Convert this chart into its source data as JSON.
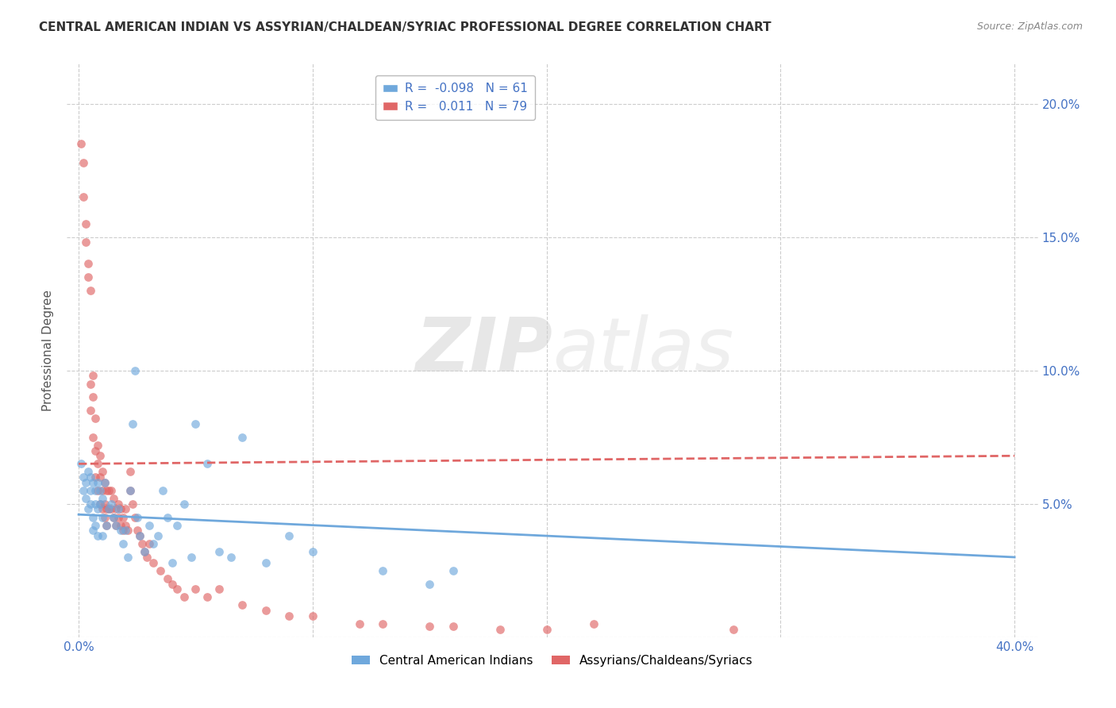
{
  "title": "CENTRAL AMERICAN INDIAN VS ASSYRIAN/CHALDEAN/SYRIAC PROFESSIONAL DEGREE CORRELATION CHART",
  "source": "Source: ZipAtlas.com",
  "ylabel": "Professional Degree",
  "y_ticks": [
    0.0,
    0.05,
    0.1,
    0.15,
    0.2
  ],
  "y_tick_labels": [
    "",
    "5.0%",
    "10.0%",
    "15.0%",
    "20.0%"
  ],
  "x_ticks": [
    0.0,
    0.1,
    0.2,
    0.3,
    0.4
  ],
  "x_tick_labels": [
    "0.0%",
    "",
    "",
    "",
    "40.0%"
  ],
  "legend_labels": [
    "Central American Indians",
    "Assyrians/Chaldeans/Syriacs"
  ],
  "blue_color": "#6fa8dc",
  "pink_color": "#e06666",
  "blue_r": "-0.098",
  "blue_n": "61",
  "pink_r": "0.011",
  "pink_n": "79",
  "watermark_zip": "ZIP",
  "watermark_atlas": "atlas",
  "blue_scatter": [
    [
      0.001,
      0.065
    ],
    [
      0.002,
      0.06
    ],
    [
      0.002,
      0.055
    ],
    [
      0.003,
      0.058
    ],
    [
      0.003,
      0.052
    ],
    [
      0.004,
      0.062
    ],
    [
      0.004,
      0.048
    ],
    [
      0.005,
      0.06
    ],
    [
      0.005,
      0.055
    ],
    [
      0.005,
      0.05
    ],
    [
      0.006,
      0.058
    ],
    [
      0.006,
      0.045
    ],
    [
      0.006,
      0.04
    ],
    [
      0.007,
      0.055
    ],
    [
      0.007,
      0.05
    ],
    [
      0.007,
      0.042
    ],
    [
      0.008,
      0.058
    ],
    [
      0.008,
      0.048
    ],
    [
      0.008,
      0.038
    ],
    [
      0.009,
      0.055
    ],
    [
      0.009,
      0.05
    ],
    [
      0.01,
      0.052
    ],
    [
      0.01,
      0.045
    ],
    [
      0.01,
      0.038
    ],
    [
      0.011,
      0.058
    ],
    [
      0.012,
      0.042
    ],
    [
      0.013,
      0.048
    ],
    [
      0.014,
      0.05
    ],
    [
      0.015,
      0.045
    ],
    [
      0.016,
      0.042
    ],
    [
      0.017,
      0.048
    ],
    [
      0.018,
      0.04
    ],
    [
      0.019,
      0.035
    ],
    [
      0.02,
      0.04
    ],
    [
      0.021,
      0.03
    ],
    [
      0.022,
      0.055
    ],
    [
      0.023,
      0.08
    ],
    [
      0.024,
      0.1
    ],
    [
      0.025,
      0.045
    ],
    [
      0.026,
      0.038
    ],
    [
      0.028,
      0.032
    ],
    [
      0.03,
      0.042
    ],
    [
      0.032,
      0.035
    ],
    [
      0.034,
      0.038
    ],
    [
      0.036,
      0.055
    ],
    [
      0.038,
      0.045
    ],
    [
      0.04,
      0.028
    ],
    [
      0.042,
      0.042
    ],
    [
      0.045,
      0.05
    ],
    [
      0.048,
      0.03
    ],
    [
      0.05,
      0.08
    ],
    [
      0.055,
      0.065
    ],
    [
      0.06,
      0.032
    ],
    [
      0.065,
      0.03
    ],
    [
      0.07,
      0.075
    ],
    [
      0.08,
      0.028
    ],
    [
      0.09,
      0.038
    ],
    [
      0.1,
      0.032
    ],
    [
      0.13,
      0.025
    ],
    [
      0.15,
      0.02
    ],
    [
      0.16,
      0.025
    ]
  ],
  "pink_scatter": [
    [
      0.001,
      0.185
    ],
    [
      0.002,
      0.178
    ],
    [
      0.002,
      0.165
    ],
    [
      0.003,
      0.155
    ],
    [
      0.003,
      0.148
    ],
    [
      0.004,
      0.14
    ],
    [
      0.004,
      0.135
    ],
    [
      0.005,
      0.13
    ],
    [
      0.005,
      0.095
    ],
    [
      0.005,
      0.085
    ],
    [
      0.006,
      0.098
    ],
    [
      0.006,
      0.09
    ],
    [
      0.006,
      0.075
    ],
    [
      0.007,
      0.082
    ],
    [
      0.007,
      0.07
    ],
    [
      0.007,
      0.06
    ],
    [
      0.008,
      0.072
    ],
    [
      0.008,
      0.065
    ],
    [
      0.008,
      0.055
    ],
    [
      0.009,
      0.068
    ],
    [
      0.009,
      0.06
    ],
    [
      0.009,
      0.05
    ],
    [
      0.01,
      0.062
    ],
    [
      0.01,
      0.055
    ],
    [
      0.01,
      0.048
    ],
    [
      0.011,
      0.058
    ],
    [
      0.011,
      0.05
    ],
    [
      0.011,
      0.045
    ],
    [
      0.012,
      0.055
    ],
    [
      0.012,
      0.048
    ],
    [
      0.012,
      0.042
    ],
    [
      0.013,
      0.055
    ],
    [
      0.013,
      0.048
    ],
    [
      0.014,
      0.055
    ],
    [
      0.014,
      0.048
    ],
    [
      0.015,
      0.052
    ],
    [
      0.015,
      0.045
    ],
    [
      0.016,
      0.048
    ],
    [
      0.016,
      0.042
    ],
    [
      0.017,
      0.05
    ],
    [
      0.017,
      0.045
    ],
    [
      0.018,
      0.048
    ],
    [
      0.018,
      0.042
    ],
    [
      0.019,
      0.045
    ],
    [
      0.019,
      0.04
    ],
    [
      0.02,
      0.048
    ],
    [
      0.02,
      0.042
    ],
    [
      0.021,
      0.04
    ],
    [
      0.022,
      0.062
    ],
    [
      0.022,
      0.055
    ],
    [
      0.023,
      0.05
    ],
    [
      0.024,
      0.045
    ],
    [
      0.025,
      0.04
    ],
    [
      0.026,
      0.038
    ],
    [
      0.027,
      0.035
    ],
    [
      0.028,
      0.032
    ],
    [
      0.029,
      0.03
    ],
    [
      0.03,
      0.035
    ],
    [
      0.032,
      0.028
    ],
    [
      0.035,
      0.025
    ],
    [
      0.038,
      0.022
    ],
    [
      0.04,
      0.02
    ],
    [
      0.042,
      0.018
    ],
    [
      0.045,
      0.015
    ],
    [
      0.05,
      0.018
    ],
    [
      0.055,
      0.015
    ],
    [
      0.06,
      0.018
    ],
    [
      0.07,
      0.012
    ],
    [
      0.08,
      0.01
    ],
    [
      0.09,
      0.008
    ],
    [
      0.1,
      0.008
    ],
    [
      0.12,
      0.005
    ],
    [
      0.13,
      0.005
    ],
    [
      0.15,
      0.004
    ],
    [
      0.16,
      0.004
    ],
    [
      0.18,
      0.003
    ],
    [
      0.2,
      0.003
    ],
    [
      0.22,
      0.005
    ],
    [
      0.28,
      0.003
    ]
  ],
  "blue_line_x": [
    0.0,
    0.4
  ],
  "blue_line_y": [
    0.046,
    0.03
  ],
  "pink_line_x": [
    0.0,
    0.4
  ],
  "pink_line_y": [
    0.065,
    0.068
  ],
  "xlim": [
    -0.005,
    0.41
  ],
  "ylim": [
    0.0,
    0.215
  ],
  "background_color": "#ffffff",
  "grid_color": "#cccccc"
}
